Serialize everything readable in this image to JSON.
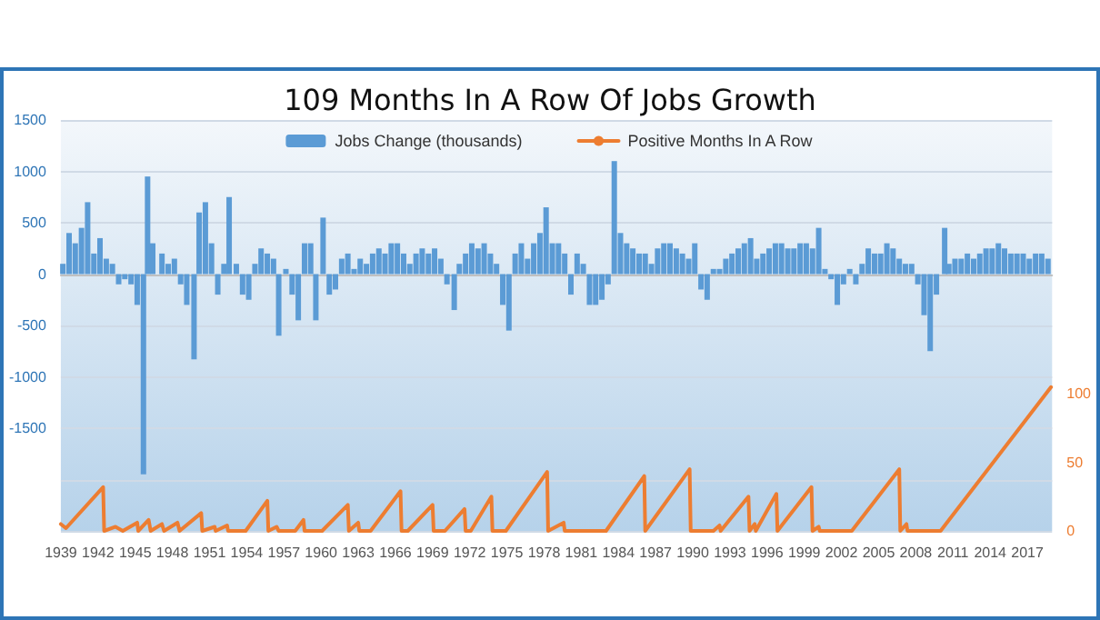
{
  "chart_data": {
    "type": "bar",
    "title": "109 Months In A Row Of Jobs Growth",
    "xlim": [
      "1939-01",
      "2019-01"
    ],
    "xticks": [
      "1939",
      "1942",
      "1945",
      "1948",
      "1951",
      "1954",
      "1957",
      "1960",
      "1963",
      "1966",
      "1969",
      "1972",
      "1975",
      "1978",
      "1981",
      "1984",
      "1987",
      "1990",
      "1993",
      "1996",
      "1999",
      "2002",
      "2005",
      "2008",
      "2011",
      "2014",
      "2017"
    ],
    "ylim": [
      -2500,
      1500
    ],
    "yticks": [
      {
        "value": -2500,
        "label": null
      },
      {
        "value": -2000,
        "label": null
      },
      -1500,
      -1000,
      -500,
      0,
      500,
      1000,
      1500
    ],
    "y2lim": [
      0,
      300
    ],
    "y2ticks": [
      0,
      50,
      100
    ],
    "grid": "y",
    "legend": "top",
    "series": [
      {
        "name": "Jobs Change (thousands)",
        "color": "#5b9bd5",
        "x": [
          "1939-03",
          "1939-09",
          "1940-03",
          "1940-09",
          "1941-03",
          "1941-09",
          "1942-03",
          "1942-09",
          "1943-03",
          "1943-09",
          "1944-03",
          "1944-09",
          "1945-03",
          "1945-09",
          "1946-01",
          "1946-06",
          "1947-03",
          "1947-09",
          "1948-03",
          "1948-09",
          "1949-03",
          "1949-10",
          "1950-03",
          "1950-09",
          "1951-03",
          "1951-09",
          "1952-03",
          "1952-08",
          "1953-03",
          "1953-09",
          "1954-03",
          "1954-09",
          "1955-03",
          "1955-09",
          "1956-03",
          "1956-08",
          "1957-03",
          "1957-09",
          "1958-03",
          "1958-09",
          "1959-03",
          "1959-08",
          "1960-03",
          "1960-09",
          "1961-03",
          "1961-09",
          "1962-03",
          "1962-09",
          "1963-03",
          "1963-09",
          "1964-03",
          "1964-09",
          "1965-03",
          "1965-09",
          "1966-03",
          "1966-09",
          "1967-03",
          "1967-09",
          "1968-03",
          "1968-09",
          "1969-03",
          "1969-09",
          "1970-03",
          "1970-10",
          "1971-03",
          "1971-09",
          "1972-03",
          "1972-09",
          "1973-03",
          "1973-09",
          "1974-03",
          "1974-09",
          "1975-03",
          "1975-09",
          "1976-03",
          "1976-09",
          "1977-03",
          "1977-09",
          "1978-03",
          "1978-09",
          "1979-03",
          "1979-09",
          "1980-03",
          "1980-09",
          "1981-03",
          "1981-09",
          "1982-03",
          "1982-09",
          "1983-03",
          "1983-09",
          "1984-03",
          "1984-09",
          "1985-03",
          "1985-09",
          "1986-03",
          "1986-09",
          "1987-03",
          "1987-09",
          "1988-03",
          "1988-09",
          "1989-03",
          "1989-09",
          "1990-03",
          "1990-09",
          "1991-03",
          "1991-09",
          "1992-03",
          "1992-09",
          "1993-03",
          "1993-09",
          "1994-03",
          "1994-09",
          "1995-03",
          "1995-09",
          "1996-03",
          "1996-09",
          "1997-03",
          "1997-09",
          "1998-03",
          "1998-09",
          "1999-03",
          "1999-09",
          "2000-03",
          "2000-09",
          "2001-03",
          "2001-09",
          "2002-03",
          "2002-09",
          "2003-03",
          "2003-09",
          "2004-03",
          "2004-09",
          "2005-03",
          "2005-09",
          "2006-03",
          "2006-09",
          "2007-03",
          "2007-09",
          "2008-03",
          "2008-09",
          "2009-03",
          "2009-09",
          "2010-05",
          "2010-09",
          "2011-03",
          "2011-09",
          "2012-03",
          "2012-09",
          "2013-03",
          "2013-09",
          "2014-03",
          "2014-09",
          "2015-03",
          "2015-09",
          "2016-03",
          "2016-09",
          "2017-03",
          "2017-09",
          "2018-03",
          "2018-09"
        ],
        "values": [
          100,
          400,
          300,
          450,
          700,
          200,
          350,
          150,
          100,
          -100,
          -50,
          -100,
          -300,
          -1950,
          950,
          300,
          200,
          100,
          150,
          -100,
          -300,
          -830,
          600,
          700,
          300,
          -200,
          100,
          750,
          100,
          -200,
          -250,
          100,
          250,
          200,
          150,
          -600,
          50,
          -200,
          -450,
          300,
          300,
          -450,
          550,
          -200,
          -150,
          150,
          200,
          50,
          150,
          100,
          200,
          250,
          200,
          300,
          300,
          200,
          100,
          200,
          250,
          200,
          250,
          150,
          -100,
          -350,
          100,
          200,
          300,
          250,
          300,
          200,
          100,
          -300,
          -550,
          200,
          300,
          150,
          300,
          400,
          650,
          300,
          300,
          200,
          -200,
          200,
          100,
          -300,
          -300,
          -250,
          -100,
          1100,
          400,
          300,
          250,
          200,
          200,
          100,
          250,
          300,
          300,
          250,
          200,
          150,
          300,
          -150,
          -250,
          50,
          50,
          150,
          200,
          250,
          300,
          350,
          150,
          200,
          250,
          300,
          300,
          250,
          250,
          300,
          300,
          250,
          450,
          50,
          -50,
          -300,
          -100,
          50,
          -100,
          100,
          250,
          200,
          200,
          300,
          250,
          150,
          100,
          100,
          -100,
          -400,
          -750,
          -200,
          450,
          100,
          150,
          150,
          200,
          150,
          200,
          250,
          250,
          300,
          250,
          200,
          200,
          200,
          150,
          200,
          200,
          150
        ]
      },
      {
        "name": "Positive Months In A Row",
        "type": "line",
        "axis": "y2",
        "color": "#ed7d31",
        "marker": "none",
        "line_style": "solid",
        "x": [
          "1939-01",
          "1939-06",
          "1942-06",
          "1942-07",
          "1943-06",
          "1944-01",
          "1945-03",
          "1945-04",
          "1946-02",
          "1946-04",
          "1947-03",
          "1947-05",
          "1948-06",
          "1948-08",
          "1950-05",
          "1950-06",
          "1951-06",
          "1951-07",
          "1952-06",
          "1952-07",
          "1953-12",
          "1955-09",
          "1955-10",
          "1956-06",
          "1956-08",
          "1957-12",
          "1958-08",
          "1958-09",
          "1960-02",
          "1962-03",
          "1962-04",
          "1963-01",
          "1963-02",
          "1964-01",
          "1966-06",
          "1966-07",
          "1967-01",
          "1969-01",
          "1969-02",
          "1970-01",
          "1971-08",
          "1971-09",
          "1972-02",
          "1973-10",
          "1973-11",
          "1974-12",
          "1978-04",
          "1978-05",
          "1979-08",
          "1979-09",
          "1983-01",
          "1986-02",
          "1986-03",
          "1989-10",
          "1989-11",
          "1991-09",
          "1992-03",
          "1992-04",
          "1994-07",
          "1994-08",
          "1995-01",
          "1995-02",
          "1996-10",
          "1996-11",
          "1999-08",
          "1999-09",
          "2000-03",
          "2000-04",
          "2002-11",
          "2006-09",
          "2006-10",
          "2007-04",
          "2007-05",
          "2010-01",
          "2018-12"
        ],
        "values": [
          5,
          2,
          32,
          0,
          3,
          0,
          6,
          0,
          8,
          0,
          5,
          0,
          6,
          0,
          13,
          0,
          3,
          0,
          4,
          0,
          0,
          22,
          0,
          3,
          0,
          0,
          8,
          0,
          0,
          19,
          0,
          6,
          0,
          0,
          29,
          0,
          0,
          19,
          0,
          0,
          16,
          0,
          0,
          25,
          0,
          0,
          43,
          0,
          6,
          0,
          0,
          40,
          0,
          45,
          0,
          0,
          4,
          0,
          25,
          0,
          5,
          0,
          27,
          0,
          32,
          0,
          3,
          0,
          0,
          45,
          0,
          5,
          0,
          0,
          105
        ]
      }
    ]
  }
}
